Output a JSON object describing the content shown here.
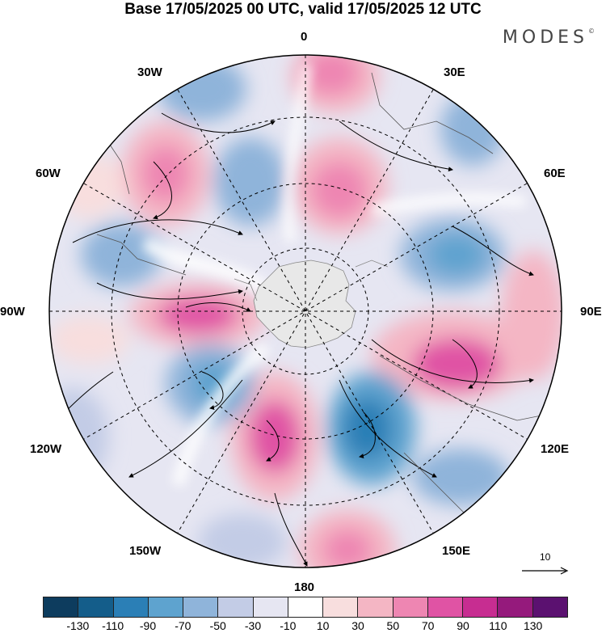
{
  "title": "Base 17/05/2025 00 UTC, valid 17/05/2025 12 UTC",
  "logo": "MODES",
  "longitude_labels": {
    "lon_0": "0",
    "lon_30E": "30E",
    "lon_60E": "60E",
    "lon_90E": "90E",
    "lon_120E": "120E",
    "lon_150E": "150E",
    "lon_180": "180",
    "lon_150W": "150W",
    "lon_120W": "120W",
    "lon_90W": "90W",
    "lon_60W": "60W",
    "lon_30W": "30W"
  },
  "reference_vector": {
    "label": "10"
  },
  "colorbar": {
    "colors": [
      "#0d3c5e",
      "#145d8a",
      "#2b7fb6",
      "#5ea3cf",
      "#8fb4da",
      "#c3cce6",
      "#e6e6f2",
      "#ffffff",
      "#f8dede",
      "#f4b6c4",
      "#ee86b2",
      "#e053a4",
      "#c72d91",
      "#951a7c",
      "#5b1170"
    ],
    "tick_labels": [
      "-130",
      "-110",
      "-90",
      "-70",
      "-50",
      "-30",
      "-10",
      "10",
      "30",
      "50",
      "70",
      "90",
      "110",
      "130"
    ]
  }
}
